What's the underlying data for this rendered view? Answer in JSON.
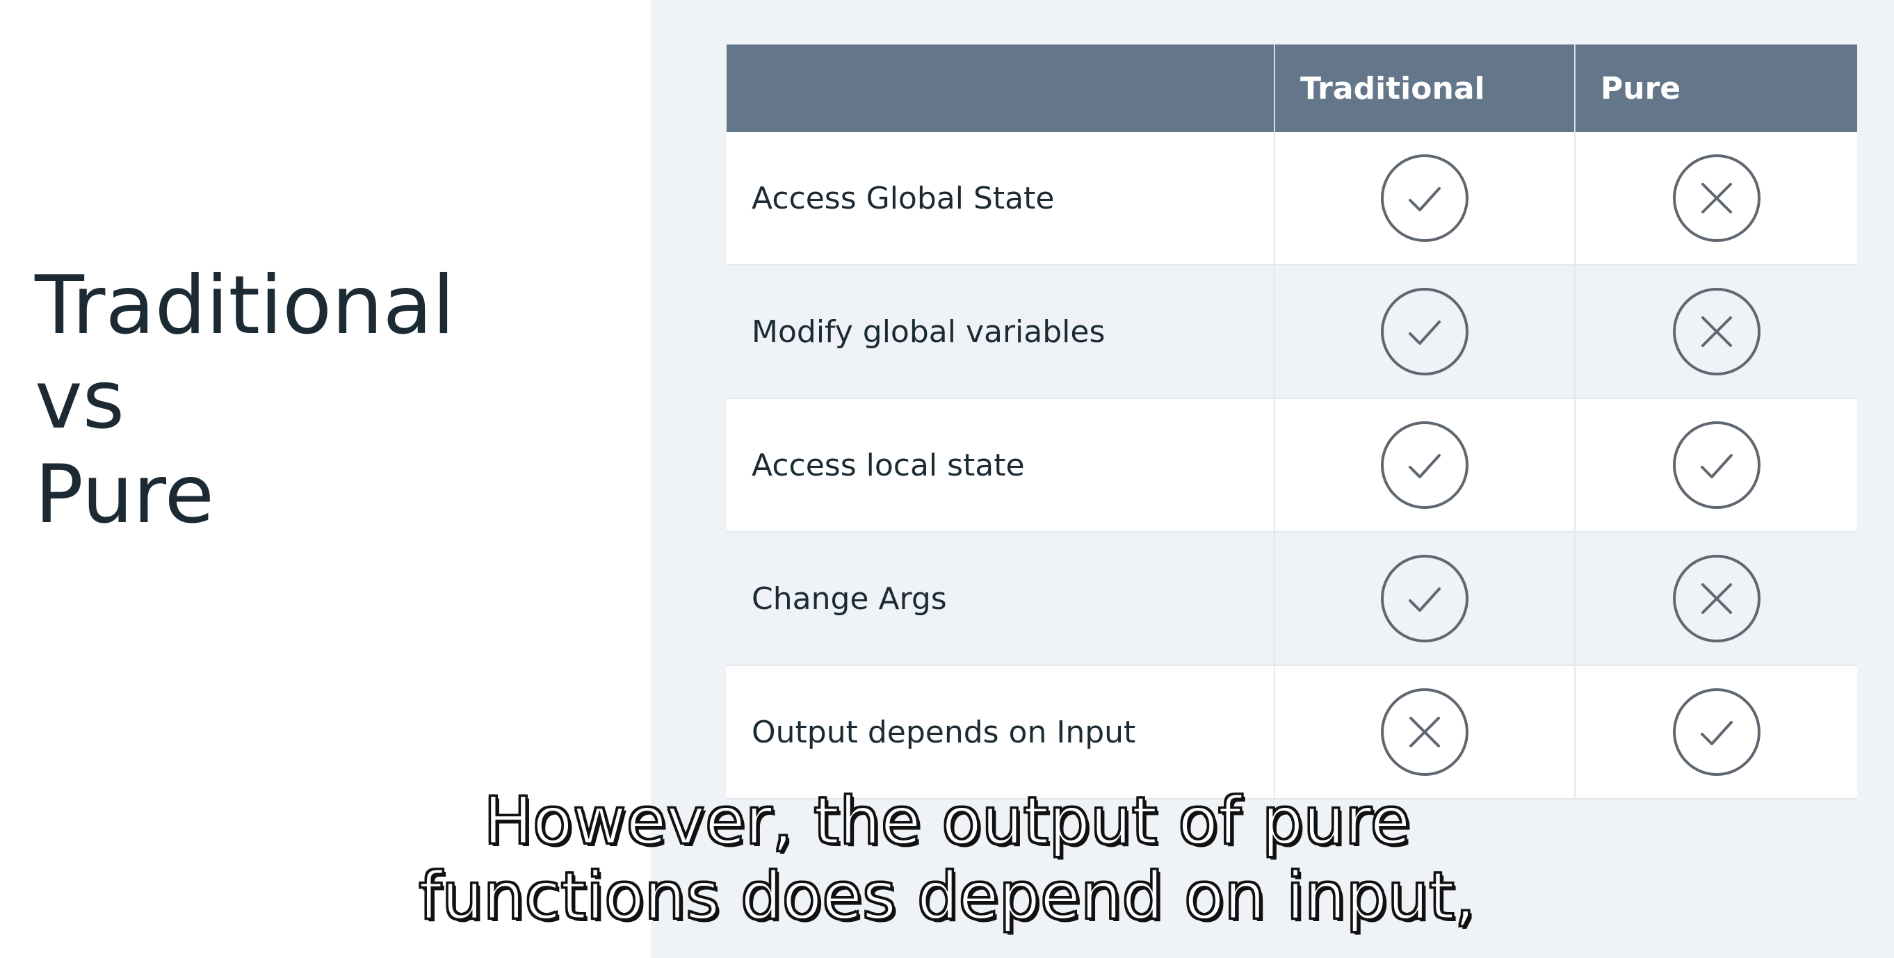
{
  "slide": {
    "title_lines": [
      "Traditional",
      "vs",
      "Pure"
    ]
  },
  "table": {
    "headers": [
      "",
      "Traditional",
      "Pure"
    ],
    "rows": [
      {
        "label": "Access Global State",
        "traditional": "check-icon",
        "pure": "cross-icon"
      },
      {
        "label": "Modify global variables",
        "traditional": "check-icon",
        "pure": "cross-icon"
      },
      {
        "label": "Access local state",
        "traditional": "check-icon",
        "pure": "check-icon"
      },
      {
        "label": "Change Args",
        "traditional": "check-icon",
        "pure": "cross-icon"
      },
      {
        "label": "Output depends on Input",
        "traditional": "cross-icon",
        "pure": "check-icon"
      }
    ]
  },
  "caption": {
    "lines": [
      "However, the output of pure",
      "functions does depend on input,"
    ]
  },
  "colors": {
    "header_bg": "#63768a",
    "panel_bg": "#eff3f8",
    "icon_stroke": "#5f6770",
    "title_text": "#1c2b33"
  }
}
